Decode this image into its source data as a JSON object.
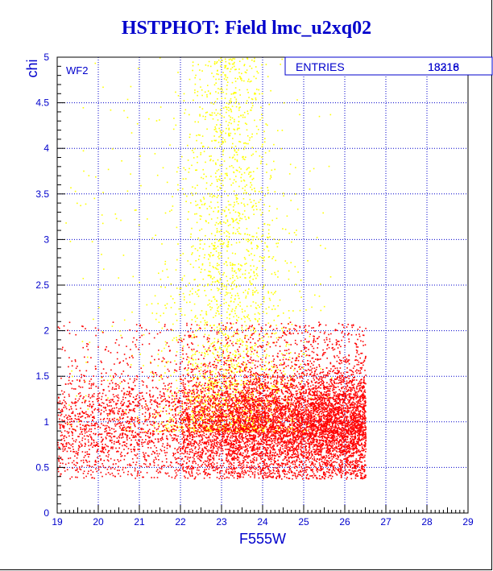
{
  "chart_data": {
    "type": "scatter",
    "title": "HSTPHOT: Field lmc_u2xq02",
    "xlabel": "F555W",
    "ylabel": "chi",
    "xlim": [
      19,
      29
    ],
    "ylim": [
      0,
      5
    ],
    "x_ticks": [
      "19",
      "20",
      "21",
      "22",
      "23",
      "24",
      "25",
      "26",
      "27",
      "28",
      "29"
    ],
    "y_ticks": [
      "0",
      "0.5",
      "1",
      "1.5",
      "2",
      "2.5",
      "3",
      "3.5",
      "4",
      "4.5",
      "5"
    ],
    "grid": true,
    "panel_label": "WF2",
    "stats_box": {
      "label": "ENTRIES",
      "values": [
        "13218",
        "18316"
      ],
      "placement": "top-right"
    },
    "series": [
      {
        "color": "#ffff00",
        "count": 2600,
        "approx_distribution": {
          "x_center": 23.2,
          "x_spread": 0.9,
          "y_range": [
            0.9,
            5.0
          ],
          "y_peak": 1.9
        }
      },
      {
        "color": "#ff0000",
        "count": 9000,
        "approx_distribution": {
          "x_range": [
            19.0,
            26.6
          ],
          "x_peak": 24.5,
          "y_center": 0.95,
          "y_spread": 0.3
        }
      }
    ]
  }
}
